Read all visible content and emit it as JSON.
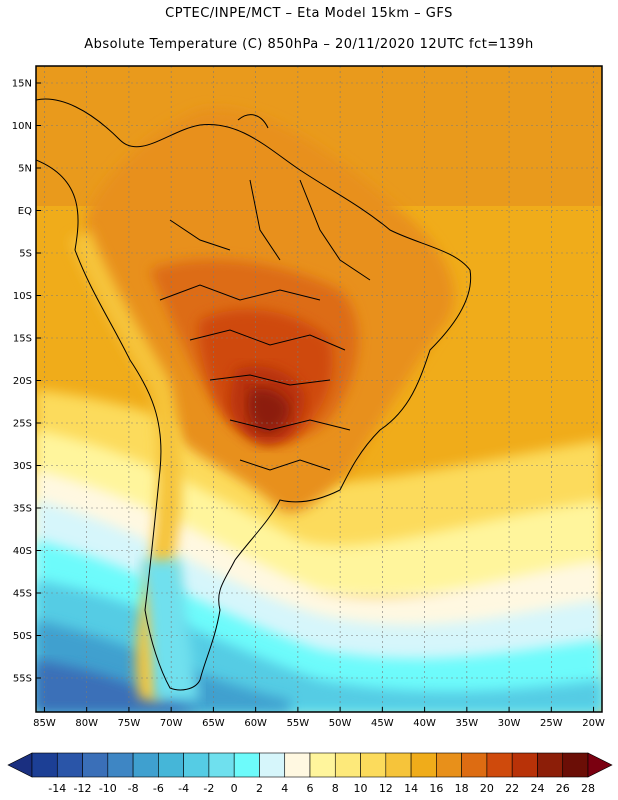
{
  "header": {
    "line1": "CPTEC/INPE/MCT –  Eta Model 15km – GFS",
    "line2": "Absolute Temperature (C) 850hPa – 20/11/2020 12UTC fct=139h"
  },
  "map": {
    "lon_range": [
      -86,
      -19
    ],
    "lat_range": [
      -59,
      17
    ],
    "lat_labels": [
      "15N",
      "10N",
      "5N",
      "EQ",
      "5S",
      "10S",
      "15S",
      "20S",
      "25S",
      "30S",
      "35S",
      "40S",
      "45S",
      "50S",
      "55S"
    ],
    "lat_values": [
      15,
      10,
      5,
      0,
      -5,
      -10,
      -15,
      -20,
      -25,
      -30,
      -35,
      -40,
      -45,
      -50,
      -55
    ],
    "lon_labels": [
      "85W",
      "80W",
      "75W",
      "70W",
      "65W",
      "60W",
      "55W",
      "50W",
      "45W",
      "40W",
      "35W",
      "30W",
      "25W",
      "20W"
    ],
    "lon_values": [
      -85,
      -80,
      -75,
      -70,
      -65,
      -60,
      -55,
      -50,
      -45,
      -40,
      -35,
      -30,
      -25,
      -20
    ],
    "regions": [
      {
        "name": "north-atlantic-warm",
        "level": "16-18"
      },
      {
        "name": "south-america-interior",
        "level": "20-22"
      },
      {
        "name": "paraguay-hot-core",
        "level": "24-26"
      },
      {
        "name": "south-atlantic-mid",
        "level": "10-12"
      },
      {
        "name": "southern-ocean-cold",
        "level": "0-2"
      }
    ]
  },
  "colorbar": {
    "labels": [
      "-14",
      "-12",
      "-10",
      "-8",
      "-6",
      "-4",
      "-2",
      "0",
      "2",
      "4",
      "6",
      "8",
      "10",
      "12",
      "14",
      "16",
      "18",
      "20",
      "22",
      "24",
      "26",
      "28"
    ],
    "colors": [
      "#1c3f95",
      "#2a55a8",
      "#3a6fb8",
      "#3e86c4",
      "#3fa0cf",
      "#45b6d8",
      "#55cce4",
      "#6fe0ee",
      "#6dfbfb",
      "#d6f6fb",
      "#fff8e1",
      "#fff59c",
      "#fde97a",
      "#fcdb5c",
      "#f6c43a",
      "#f0ac1a",
      "#e8901a",
      "#dd6c12",
      "#cf4a0c",
      "#b83208",
      "#8c1e08",
      "#6b0e06"
    ],
    "under_color": "#1a2f80",
    "over_color": "#7a0010"
  }
}
